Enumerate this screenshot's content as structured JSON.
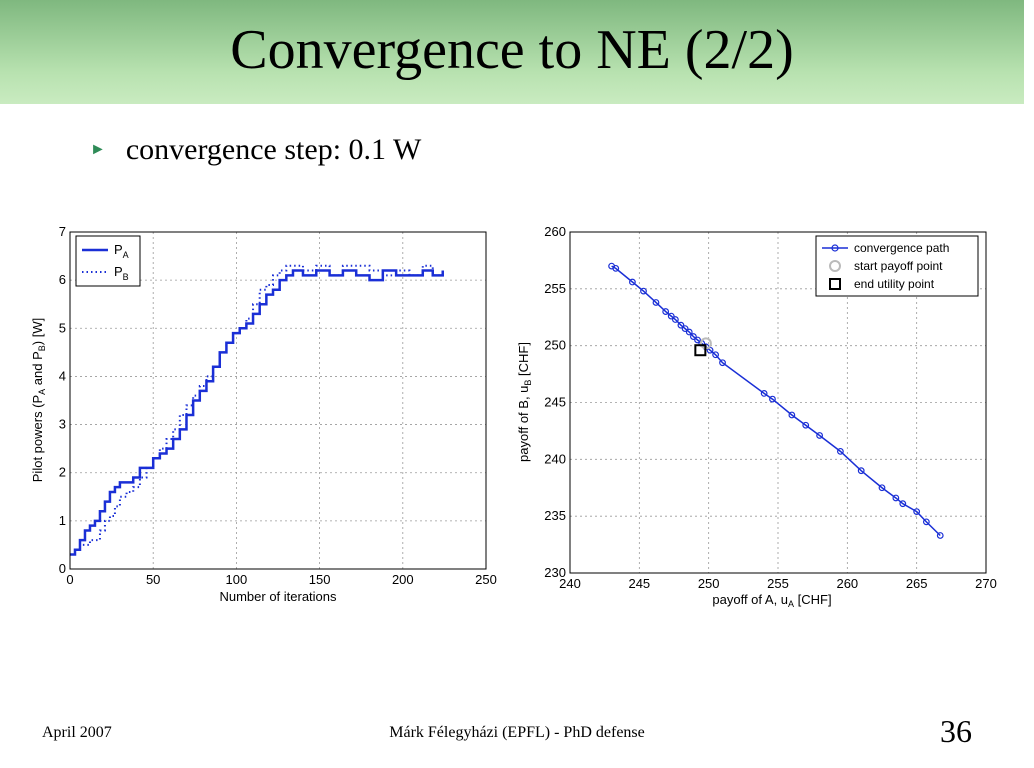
{
  "slide": {
    "title": "Convergence to NE (2/2)",
    "bullet": "convergence step: 0.1 W",
    "footer_left": "April 2007",
    "footer_center": "Márk Félegyházi (EPFL) - PhD defense",
    "page_number": "36"
  },
  "chart_data": [
    {
      "type": "line",
      "title": "",
      "xlabel": "Number  of iterations",
      "ylabel": "Pilot powers (P_A and P_B) [W]",
      "xlim": [
        0,
        250
      ],
      "ylim": [
        0,
        7
      ],
      "xticks": [
        0,
        50,
        100,
        150,
        200,
        250
      ],
      "yticks": [
        0,
        1,
        2,
        3,
        4,
        5,
        6,
        7
      ],
      "grid": true,
      "legend": "top-left",
      "series": [
        {
          "name": "P_A",
          "style": "solid",
          "color": "#1a2fd6",
          "x": [
            0,
            3,
            6,
            9,
            12,
            15,
            18,
            21,
            24,
            27,
            30,
            34,
            38,
            42,
            46,
            50,
            54,
            58,
            62,
            66,
            70,
            74,
            78,
            82,
            86,
            90,
            94,
            98,
            102,
            106,
            110,
            114,
            118,
            122,
            126,
            130,
            134,
            140,
            148,
            156,
            164,
            172,
            180,
            188,
            196,
            204,
            212,
            218,
            224
          ],
          "y": [
            0.3,
            0.4,
            0.6,
            0.8,
            0.9,
            1.0,
            1.2,
            1.4,
            1.6,
            1.7,
            1.8,
            1.8,
            1.9,
            2.1,
            2.1,
            2.3,
            2.4,
            2.5,
            2.7,
            2.9,
            3.2,
            3.5,
            3.7,
            3.9,
            4.2,
            4.5,
            4.7,
            4.9,
            5.0,
            5.1,
            5.3,
            5.5,
            5.7,
            5.8,
            6.0,
            6.1,
            6.2,
            6.1,
            6.2,
            6.1,
            6.2,
            6.1,
            6.0,
            6.2,
            6.1,
            6.1,
            6.2,
            6.1,
            6.2
          ]
        },
        {
          "name": "P_B",
          "style": "dotted",
          "color": "#1a2fd6",
          "x": [
            0,
            3,
            6,
            9,
            12,
            15,
            18,
            21,
            24,
            27,
            30,
            34,
            38,
            42,
            46,
            50,
            54,
            58,
            62,
            66,
            70,
            74,
            78,
            82,
            86,
            90,
            94,
            98,
            102,
            106,
            110,
            114,
            118,
            122,
            126,
            130,
            134,
            140,
            148,
            156,
            164,
            172,
            180,
            188,
            196,
            204,
            212,
            218,
            224
          ],
          "y": [
            0.3,
            0.4,
            0.5,
            0.5,
            0.6,
            0.6,
            0.8,
            1.0,
            1.1,
            1.3,
            1.5,
            1.6,
            1.7,
            1.9,
            2.1,
            2.3,
            2.5,
            2.7,
            2.9,
            3.2,
            3.4,
            3.6,
            3.8,
            4.0,
            4.2,
            4.5,
            4.7,
            4.9,
            5.0,
            5.2,
            5.5,
            5.8,
            5.9,
            6.1,
            6.2,
            6.3,
            6.3,
            6.2,
            6.3,
            6.1,
            6.3,
            6.3,
            6.2,
            6.1,
            6.2,
            6.1,
            6.3,
            6.1,
            6.2
          ]
        }
      ]
    },
    {
      "type": "line",
      "title": "",
      "xlabel": "payoff of A, u_A [CHF]",
      "ylabel": "payoff of B, u_B [CHF]",
      "xlim": [
        240,
        270
      ],
      "ylim": [
        230,
        260
      ],
      "xticks": [
        240,
        245,
        250,
        255,
        260,
        265,
        270
      ],
      "yticks": [
        230,
        235,
        240,
        245,
        250,
        255,
        260
      ],
      "grid": true,
      "legend": "top-right",
      "legend_entries": [
        "convergence path",
        "start payoff point",
        "end utility point"
      ],
      "series": [
        {
          "name": "convergence path",
          "color": "#1a2fd6",
          "x": [
            243.0,
            243.3,
            244.5,
            245.3,
            246.2,
            246.9,
            247.3,
            247.6,
            248.0,
            248.3,
            248.6,
            248.9,
            249.2,
            249.5,
            249.8,
            250.1,
            250.5,
            251.0,
            254.0,
            254.6,
            256.0,
            257.0,
            258.0,
            259.5,
            261.0,
            262.5,
            263.5,
            264.0,
            265.0,
            265.7,
            266.7
          ],
          "y": [
            257.0,
            256.8,
            255.6,
            254.8,
            253.8,
            253.0,
            252.6,
            252.3,
            251.8,
            251.5,
            251.2,
            250.8,
            250.5,
            250.2,
            249.9,
            249.6,
            249.2,
            248.5,
            245.8,
            245.3,
            243.9,
            243.0,
            242.1,
            240.7,
            239.0,
            237.5,
            236.6,
            236.1,
            235.4,
            234.5,
            233.3
          ]
        }
      ],
      "start_point": {
        "x": 249.8,
        "y": 250.2
      },
      "end_point": {
        "x": 249.4,
        "y": 249.6
      }
    }
  ]
}
